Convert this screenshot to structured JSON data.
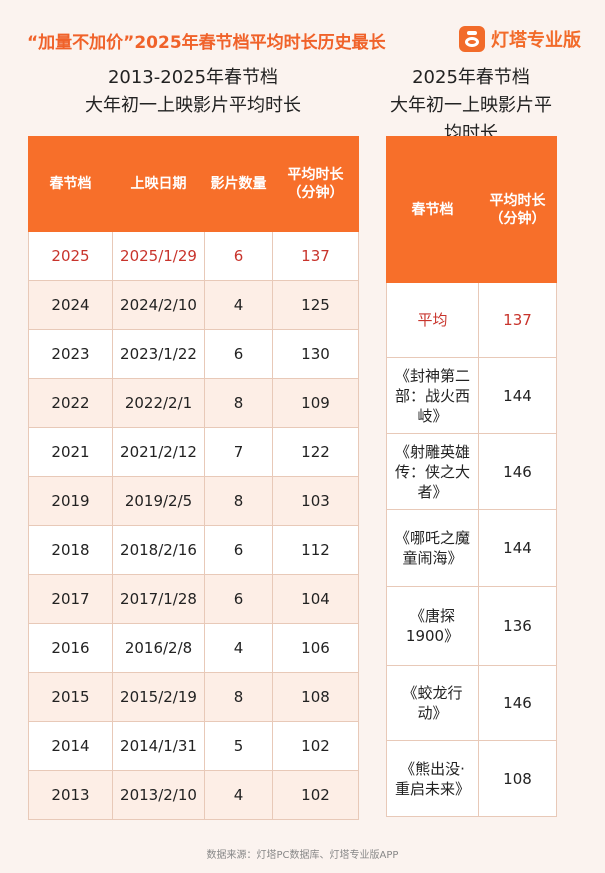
{
  "header": {
    "title": "“加量不加价”2025年春节档平均时长历史最长",
    "brand": "灯塔专业版"
  },
  "left": {
    "subtitle_line1": "2013-2025年春节档",
    "subtitle_line2": "大年初一上映影片平均时长"
  },
  "right": {
    "subtitle_line1": "2025年春节档",
    "subtitle_line2": "大年初一上映影片平均时长"
  },
  "chart_data": [
    {
      "type": "table",
      "columns": [
        "春节档",
        "上映日期",
        "影片数量",
        "平均时长（分钟）"
      ],
      "rows": [
        [
          "2025",
          "2025/1/29",
          "6",
          "137"
        ],
        [
          "2024",
          "2024/2/10",
          "4",
          "125"
        ],
        [
          "2023",
          "2023/1/22",
          "6",
          "130"
        ],
        [
          "2022",
          "2022/2/1",
          "8",
          "109"
        ],
        [
          "2021",
          "2021/2/12",
          "7",
          "122"
        ],
        [
          "2019",
          "2019/2/5",
          "8",
          "103"
        ],
        [
          "2018",
          "2018/2/16",
          "6",
          "112"
        ],
        [
          "2017",
          "2017/1/28",
          "6",
          "104"
        ],
        [
          "2016",
          "2016/2/8",
          "4",
          "106"
        ],
        [
          "2015",
          "2015/2/19",
          "8",
          "108"
        ],
        [
          "2014",
          "2014/1/31",
          "5",
          "102"
        ],
        [
          "2013",
          "2013/2/10",
          "4",
          "102"
        ]
      ]
    },
    {
      "type": "table",
      "columns": [
        "春节档",
        "平均时长（分钟）"
      ],
      "rows": [
        [
          "平均",
          "137"
        ],
        [
          "《封神第二部：战火西岐》",
          "144"
        ],
        [
          "《射雕英雄传：侠之大者》",
          "146"
        ],
        [
          "《哪吒之魔童闹海》",
          "144"
        ],
        [
          "《唐探1900》",
          "136"
        ],
        [
          "《蛟龙行动》",
          "146"
        ],
        [
          "《熊出没·重启未来》",
          "108"
        ]
      ]
    }
  ],
  "footer": {
    "source": "数据来源：灯塔PC数据库、灯塔专业版APP"
  }
}
